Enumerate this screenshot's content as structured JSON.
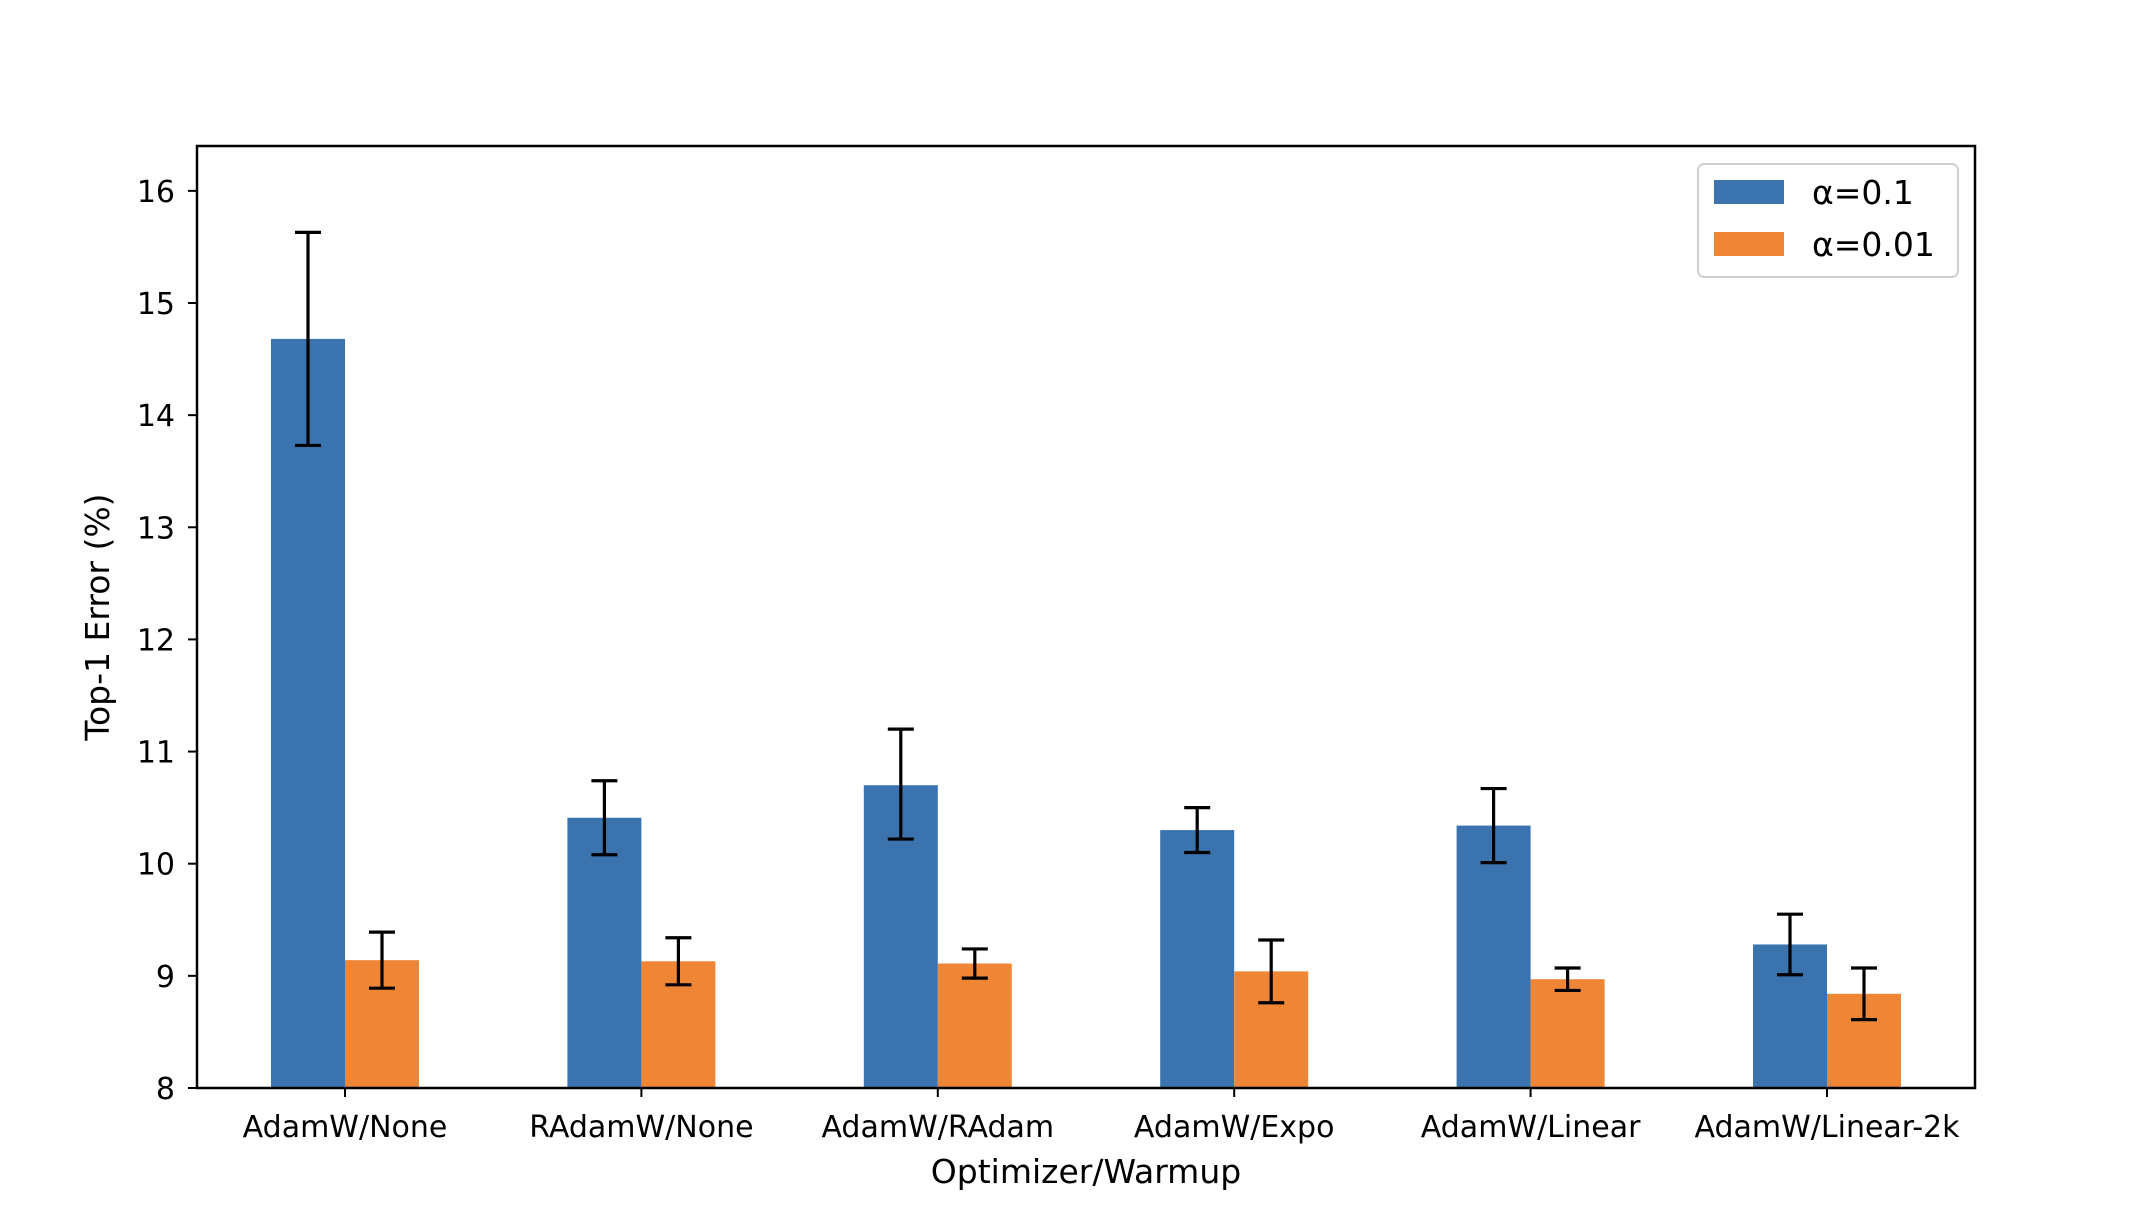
{
  "chart_data": {
    "type": "bar",
    "title": "",
    "xlabel": "Optimizer/Warmup",
    "ylabel": "Top-1 Error (%)",
    "categories": [
      "AdamW/None",
      "RAdamW/None",
      "AdamW/RAdam",
      "AdamW/Expo",
      "AdamW/Linear",
      "AdamW/Linear-2k"
    ],
    "series": [
      {
        "name": "α=0.1",
        "color": "#3b73af",
        "values": [
          14.68,
          10.41,
          10.7,
          10.3,
          10.34,
          9.28
        ],
        "error_low": [
          13.73,
          10.08,
          10.22,
          10.1,
          10.01,
          9.01
        ],
        "error_high": [
          15.63,
          10.74,
          11.2,
          10.5,
          10.67,
          9.55
        ]
      },
      {
        "name": "α=0.01",
        "color": "#ef8636",
        "values": [
          9.14,
          9.13,
          9.11,
          9.04,
          8.97,
          8.84
        ],
        "error_low": [
          8.89,
          8.92,
          8.98,
          8.76,
          8.87,
          8.61
        ],
        "error_high": [
          9.39,
          9.34,
          9.24,
          9.32,
          9.07,
          9.07
        ]
      }
    ],
    "ylim": [
      8,
      16.4
    ],
    "yticks": [
      "8",
      "9",
      "10",
      "11",
      "12",
      "13",
      "14",
      "15",
      "16"
    ],
    "grid": false,
    "legend_position": "top-right"
  }
}
